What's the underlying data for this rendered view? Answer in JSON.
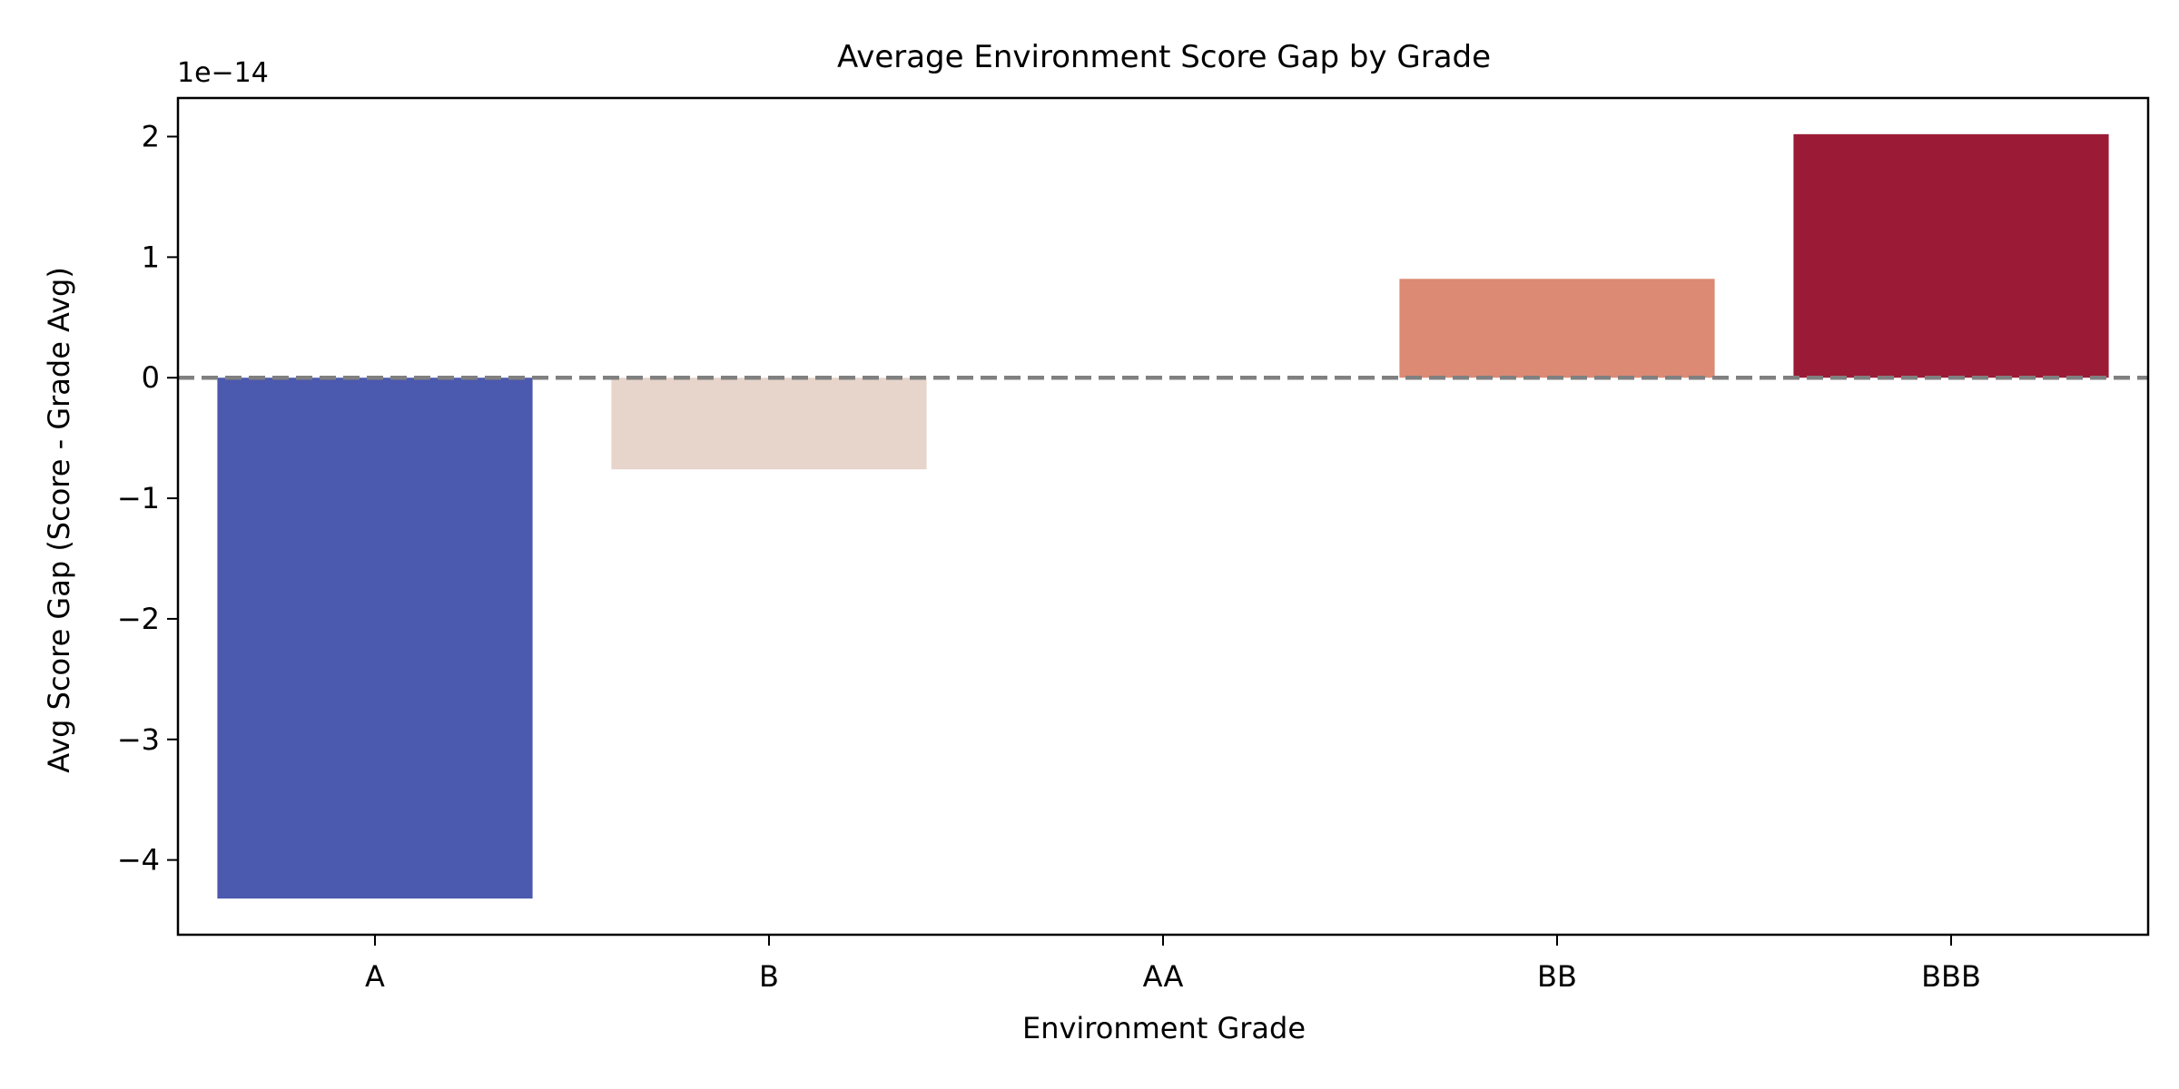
{
  "chart_data": {
    "type": "bar",
    "title": "Average Environment Score Gap by Grade",
    "xlabel": "Environment Grade",
    "ylabel": "Avg Score Gap (Score - Grade Avg)",
    "offset_label": "1e−14",
    "categories": [
      "A",
      "B",
      "AA",
      "BB",
      "BBB"
    ],
    "values": [
      -4.32,
      -0.76,
      0.0,
      0.82,
      2.02
    ],
    "value_scale": "1e-14",
    "colors": [
      "#4b59ae",
      "#e7d4ca",
      "#f2cbb7",
      "#dc8a74",
      "#9b1b36"
    ],
    "ylim": [
      -4.62,
      2.32
    ],
    "yticks": [
      {
        "value": 2,
        "label": "2"
      },
      {
        "value": 1,
        "label": "1"
      },
      {
        "value": 0,
        "label": "0"
      },
      {
        "value": -1,
        "label": "−1"
      },
      {
        "value": -2,
        "label": "−2"
      },
      {
        "value": -3,
        "label": "−3"
      },
      {
        "value": -4,
        "label": "−4"
      }
    ],
    "reference_line": {
      "value": 0,
      "style": "dashed",
      "color": "#808080"
    },
    "grid": false,
    "legend": "none"
  }
}
